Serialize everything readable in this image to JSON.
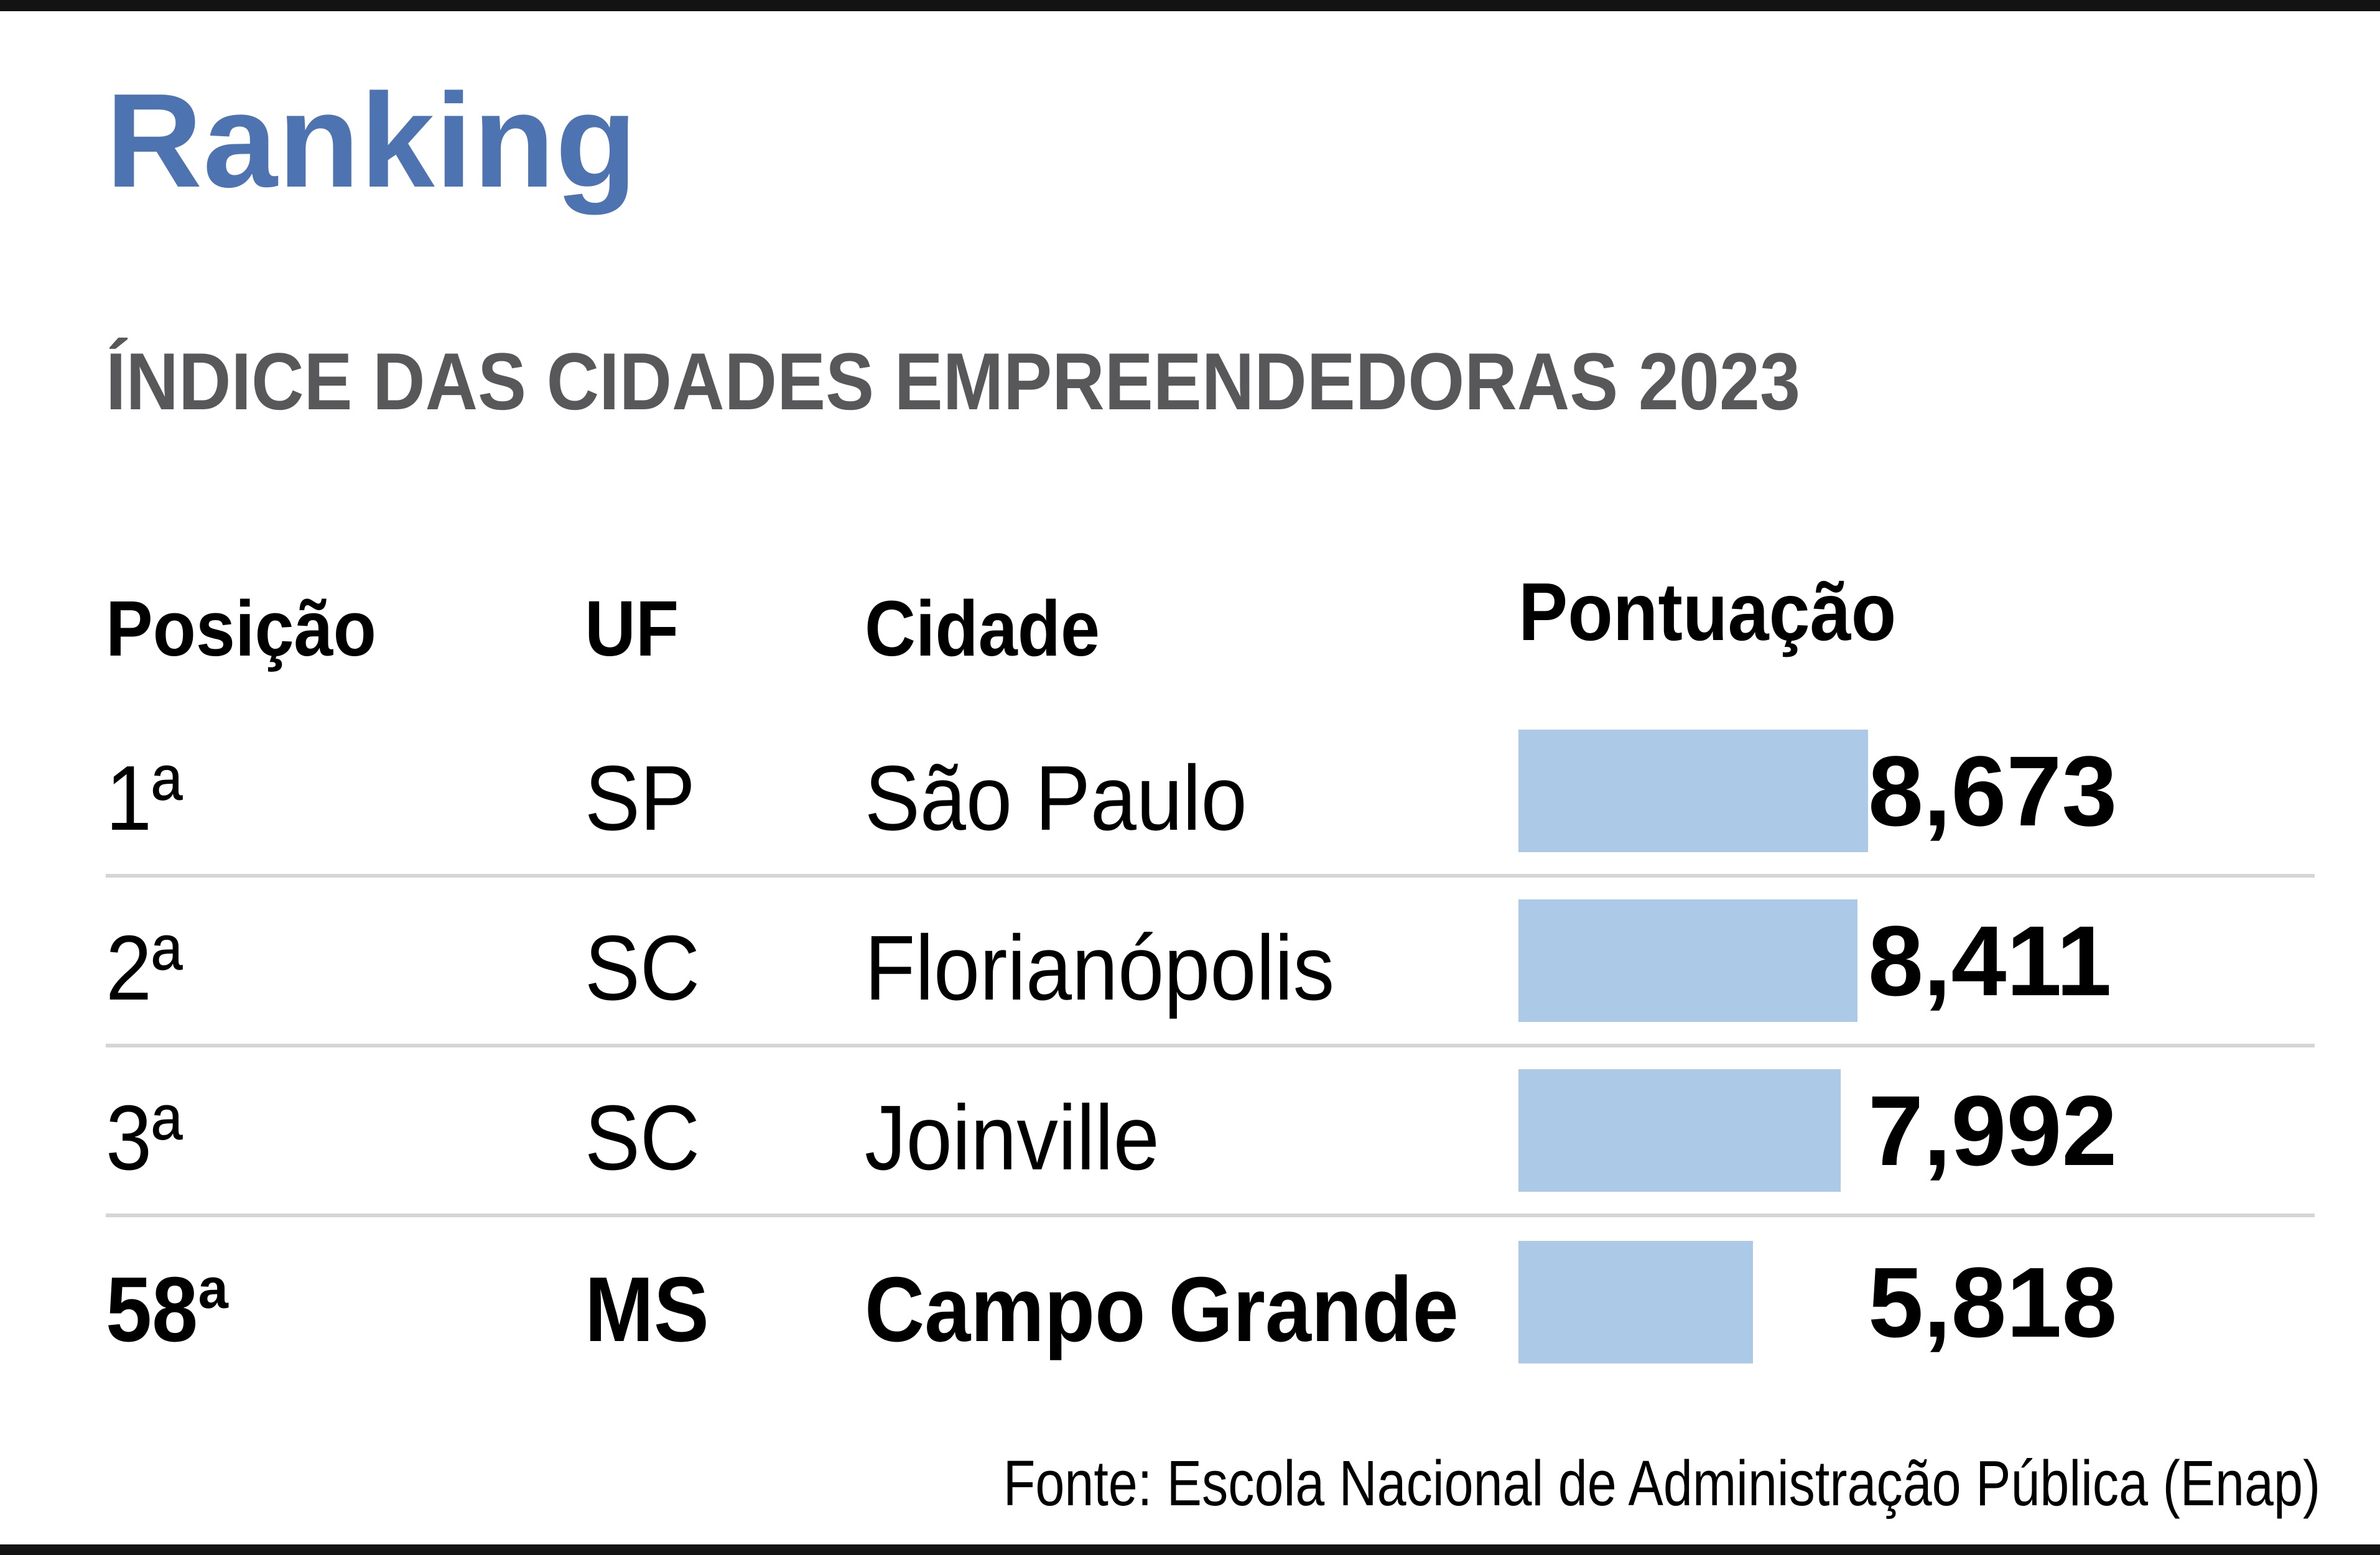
{
  "header": {
    "title": "Ranking",
    "subtitle": "ÍNDICE DAS CIDADES EMPREENDEDORAS 2023"
  },
  "table": {
    "columns": [
      "Posição",
      "UF",
      "Cidade",
      "Pontuação"
    ]
  },
  "chart_data": {
    "type": "bar",
    "orientation": "horizontal",
    "grid": false,
    "legend_position": "none",
    "title": "Ranking",
    "subtitle": "ÍNDICE DAS CIDADES EMPREENDEDORAS 2023",
    "categories": [
      "São Paulo",
      "Florianópolis",
      "Joinville",
      "Campo Grande"
    ],
    "values": [
      8.673,
      8.411,
      7.992,
      5.818
    ],
    "value_labels": [
      "8,673",
      "8,411",
      "7,992",
      "5,818"
    ],
    "xlim": [
      0,
      8.673
    ],
    "max_score": 8.673,
    "rows": [
      {
        "position": "1ª",
        "uf": "SP",
        "city": "São Paulo",
        "score": 8.673,
        "score_label": "8,673",
        "highlight": false
      },
      {
        "position": "2ª",
        "uf": "SC",
        "city": "Florianópolis",
        "score": 8.411,
        "score_label": "8,411",
        "highlight": false
      },
      {
        "position": "3ª",
        "uf": "SC",
        "city": "Joinville",
        "score": 7.992,
        "score_label": "7,992",
        "highlight": false
      },
      {
        "position": "58ª",
        "uf": "MS",
        "city": "Campo Grande",
        "score": 5.818,
        "score_label": "5,818",
        "highlight": true
      }
    ]
  },
  "footer": {
    "source": "Fonte: Escola Nacional de Administração Pública (Enap)"
  },
  "colors": {
    "title_blue": "#4d74b0",
    "subtitle_gray": "#58585a",
    "bar_blue": "#adc9e8",
    "row_separator": "#d5d5d5",
    "frame_black": "#131313",
    "text_black": "#000000"
  }
}
